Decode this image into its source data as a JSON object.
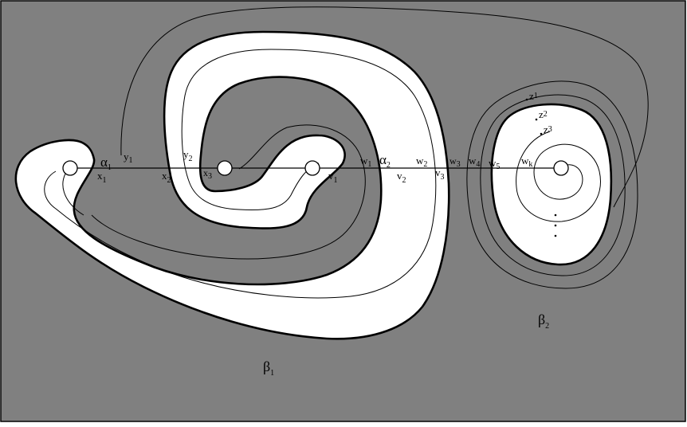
{
  "colors": {
    "background": "#808080",
    "surface": "#ffffff",
    "ink": "#000000"
  },
  "labels": {
    "alpha1": {
      "base": "α",
      "sub": "1"
    },
    "alpha2": {
      "base": "α",
      "sub": "2"
    },
    "beta1": {
      "base": "β",
      "sub": "1"
    },
    "beta2": {
      "base": "β",
      "sub": "2"
    },
    "x1": {
      "base": "x",
      "sub": "1"
    },
    "x2": {
      "base": "x",
      "sub": "2"
    },
    "x3": {
      "base": "x",
      "sub": "3"
    },
    "y1": {
      "base": "y",
      "sub": "1"
    },
    "y2": {
      "base": "y",
      "sub": "2"
    },
    "v1": {
      "base": "v",
      "sub": "1"
    },
    "v2": {
      "base": "v",
      "sub": "2"
    },
    "v3": {
      "base": "v",
      "sub": "3"
    },
    "w1": {
      "base": "w",
      "sub": "1"
    },
    "w2": {
      "base": "w",
      "sub": "2"
    },
    "w3": {
      "base": "w",
      "sub": "3"
    },
    "w4": {
      "base": "w",
      "sub": "4"
    },
    "w5": {
      "base": "w",
      "sub": "5"
    },
    "wk": {
      "base": "w",
      "sub": "k"
    },
    "z1": {
      "base": "z",
      "sub": "1"
    },
    "z2": {
      "base": "z",
      "sub": "2"
    },
    "z3": {
      "base": "z",
      "sub": "3"
    }
  }
}
